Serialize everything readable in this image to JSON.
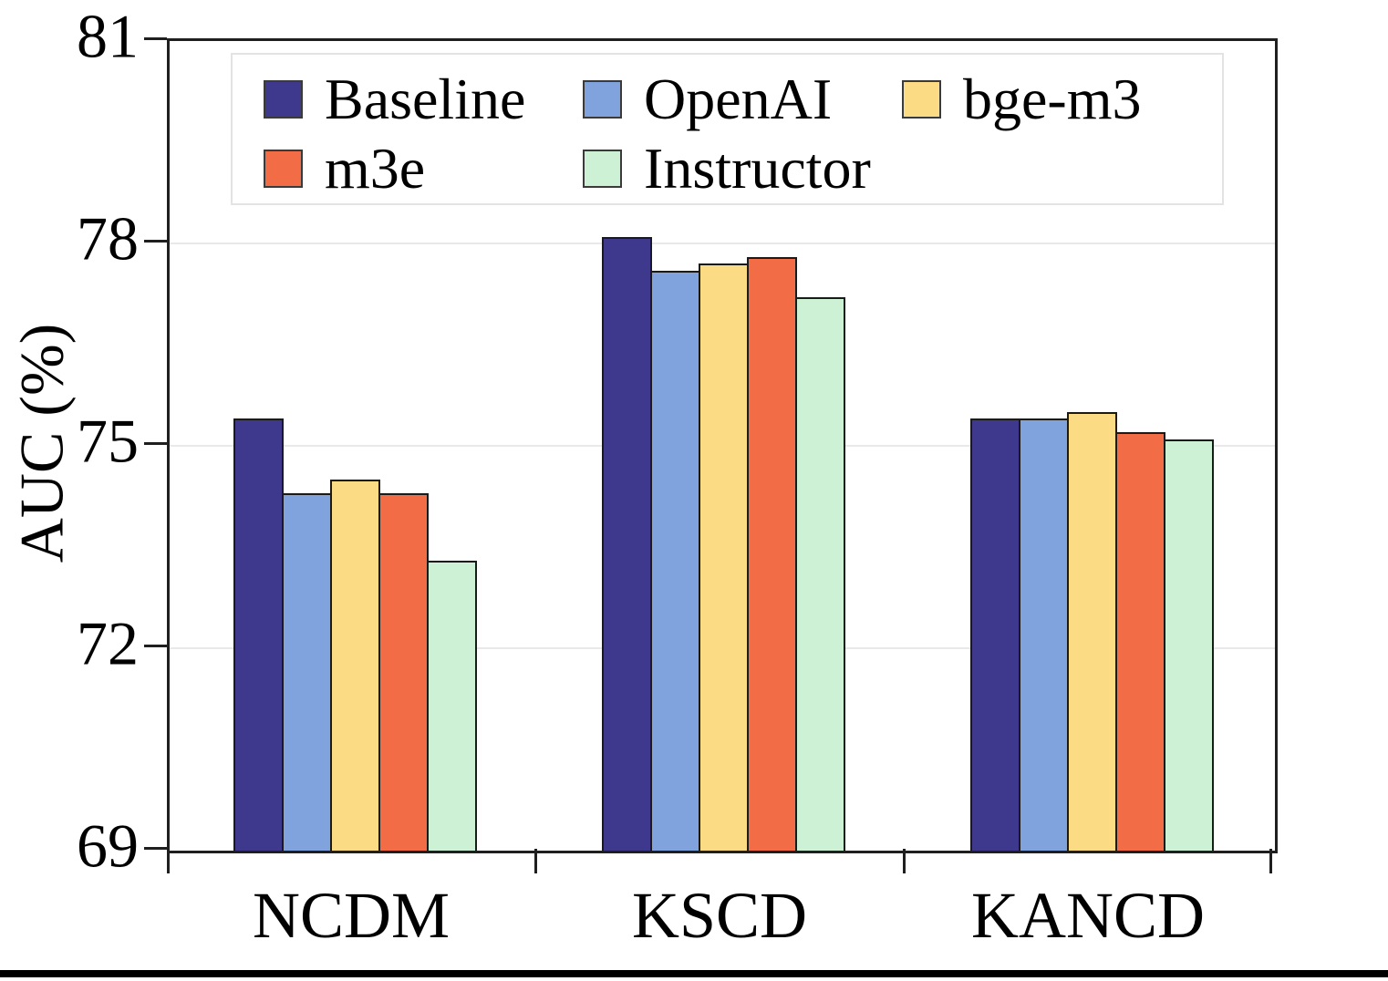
{
  "chart_data": {
    "type": "bar",
    "title": "",
    "ylabel": "AUC (%)",
    "xlabel": "",
    "categories": [
      "NCDM",
      "KSCD",
      "KANCD"
    ],
    "series": [
      {
        "name": "Baseline",
        "color": "#3E398C",
        "values": [
          75.4,
          78.1,
          75.4
        ]
      },
      {
        "name": "OpenAI",
        "color": "#80A3DE",
        "values": [
          74.3,
          77.6,
          75.4
        ]
      },
      {
        "name": "bge-m3",
        "color": "#FBDC84",
        "values": [
          74.5,
          77.7,
          75.5
        ]
      },
      {
        "name": "m3e",
        "color": "#F26D45",
        "values": [
          74.3,
          77.8,
          75.2
        ]
      },
      {
        "name": "Instructor",
        "color": "#CCF1D5",
        "values": [
          73.3,
          77.2,
          75.1
        ]
      }
    ],
    "ylim": [
      69,
      81
    ],
    "yticks": [
      69,
      72,
      75,
      78,
      81
    ],
    "gridline_values": [
      72,
      75,
      78
    ],
    "grid": "horizontal",
    "legend_position": "upper-left",
    "colors": {
      "spine": "#1f1f1f",
      "gridline": "#e9e9e9",
      "bar_edge": "#1a1a1a",
      "legend_border": "#e3e3e3"
    }
  }
}
